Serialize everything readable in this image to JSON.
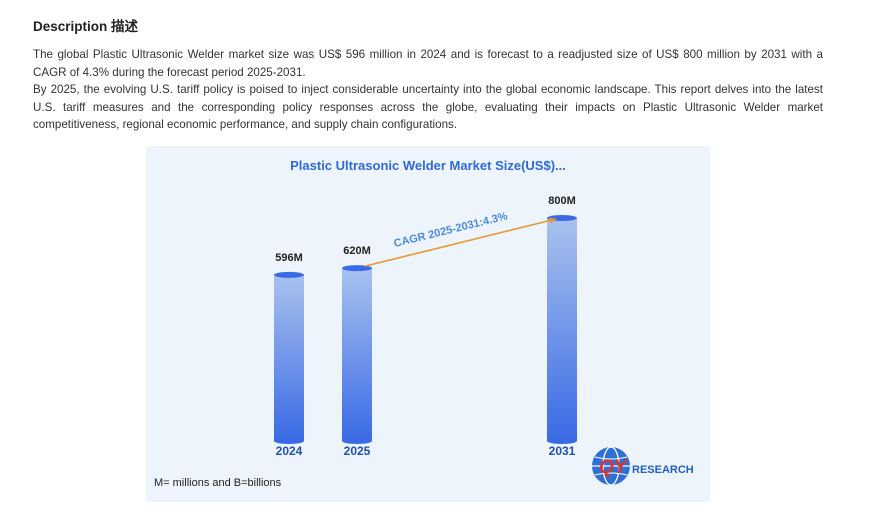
{
  "description": {
    "heading": "Description 描述",
    "paragraph_1": "The global Plastic Ultrasonic Welder market size was US$ 596 million in 2024 and is forecast to a readjusted size of US$ 800 million by 2031 with a CAGR of 4.3% during the forecast period 2025-2031.",
    "paragraph_2": "By 2025, the evolving U.S. tariff policy is poised to inject considerable uncertainty into the global economic landscape. This report delves into the latest U.S. tariff measures and the corresponding policy responses across the globe, evaluating their impacts on Plastic Ultrasonic Welder market competitiveness, regional economic performance, and supply chain configurations."
  },
  "chart_data": {
    "type": "bar",
    "title": "Plastic Ultrasonic Welder Market Size(US$)...",
    "categories": [
      "2024",
      "2025",
      "2031"
    ],
    "values": [
      596,
      620,
      800
    ],
    "value_labels": [
      "596M",
      "620M",
      "800M"
    ],
    "cagr_label": "CAGR 2025-2031:4.3%",
    "footnote": "M= millions and B=billions",
    "colors": {
      "bar_top": "#a9c2ee",
      "bar_bottom": "#3a6ae6",
      "title": "#2e6bd6",
      "category_label": "#1f4fb8",
      "cagr_line": "#e59a2c",
      "cagr_text": "#4a8be0",
      "panel_bg": "#eef4fc"
    }
  },
  "logo": {
    "letters": "QY",
    "text": "RESEARCH",
    "icon": "globe-icon",
    "colors": {
      "globe": "#2f6fd6",
      "letters": "#e0322c",
      "text": "#1f5fc8"
    }
  }
}
